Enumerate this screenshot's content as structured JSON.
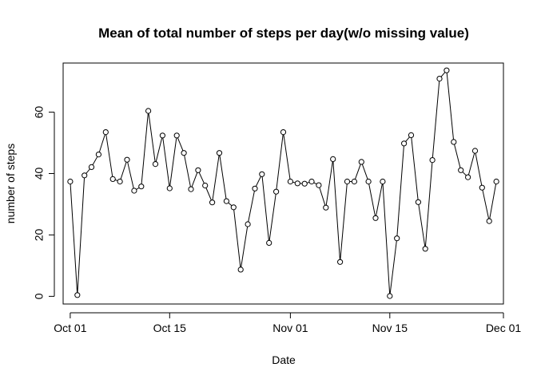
{
  "chart_data": {
    "type": "line",
    "title": "Mean of total number of steps per day(w/o missing value)",
    "xlabel": "Date",
    "ylabel": "number of steps",
    "x_start_date": "2012-10-01",
    "xlim": [
      "2012-09-30",
      "2012-12-01"
    ],
    "ylim": [
      -2.5,
      76
    ],
    "grid": false,
    "x_ticks": [
      {
        "date": "2012-10-01",
        "label": "Oct 01"
      },
      {
        "date": "2012-10-15",
        "label": "Oct 15"
      },
      {
        "date": "2012-11-01",
        "label": "Nov 01"
      },
      {
        "date": "2012-11-15",
        "label": "Nov 15"
      },
      {
        "date": "2012-12-01",
        "label": "Dec 01"
      }
    ],
    "y_ticks": [
      0,
      20,
      40,
      60
    ],
    "series": [
      {
        "x": [
          "2012-10-01",
          "2012-10-02",
          "2012-10-03",
          "2012-10-04",
          "2012-10-05",
          "2012-10-06",
          "2012-10-07",
          "2012-10-08",
          "2012-10-09",
          "2012-10-10",
          "2012-10-11",
          "2012-10-12",
          "2012-10-13",
          "2012-10-14",
          "2012-10-15",
          "2012-10-16",
          "2012-10-17",
          "2012-10-18",
          "2012-10-19",
          "2012-10-20",
          "2012-10-21",
          "2012-10-22",
          "2012-10-23",
          "2012-10-24",
          "2012-10-25",
          "2012-10-26",
          "2012-10-27",
          "2012-10-28",
          "2012-10-29",
          "2012-10-30",
          "2012-10-31",
          "2012-11-01",
          "2012-11-02",
          "2012-11-03",
          "2012-11-04",
          "2012-11-05",
          "2012-11-06",
          "2012-11-07",
          "2012-11-08",
          "2012-11-09",
          "2012-11-10",
          "2012-11-11",
          "2012-11-12",
          "2012-11-13",
          "2012-11-14",
          "2012-11-15",
          "2012-11-16",
          "2012-11-17",
          "2012-11-18",
          "2012-11-19",
          "2012-11-20",
          "2012-11-21",
          "2012-11-22",
          "2012-11-23",
          "2012-11-24",
          "2012-11-25",
          "2012-11-26",
          "2012-11-27",
          "2012-11-28",
          "2012-11-29",
          "2012-11-30"
        ],
        "values": [
          37.4,
          0.4,
          39.4,
          42.1,
          46.2,
          53.5,
          38.2,
          37.4,
          44.5,
          34.4,
          35.8,
          60.4,
          43.1,
          52.4,
          35.2,
          52.4,
          46.7,
          34.9,
          41.1,
          36.1,
          30.6,
          46.7,
          31.0,
          29.0,
          8.7,
          23.5,
          35.1,
          39.8,
          17.4,
          34.1,
          53.5,
          37.4,
          36.8,
          36.7,
          37.4,
          36.2,
          28.9,
          44.7,
          11.2,
          37.4,
          37.4,
          43.8,
          37.4,
          25.5,
          37.4,
          0.1,
          18.9,
          49.8,
          52.5,
          30.7,
          15.5,
          44.4,
          70.9,
          73.6,
          50.3,
          41.1,
          38.8,
          47.4,
          35.4,
          24.5,
          37.4
        ]
      }
    ]
  }
}
